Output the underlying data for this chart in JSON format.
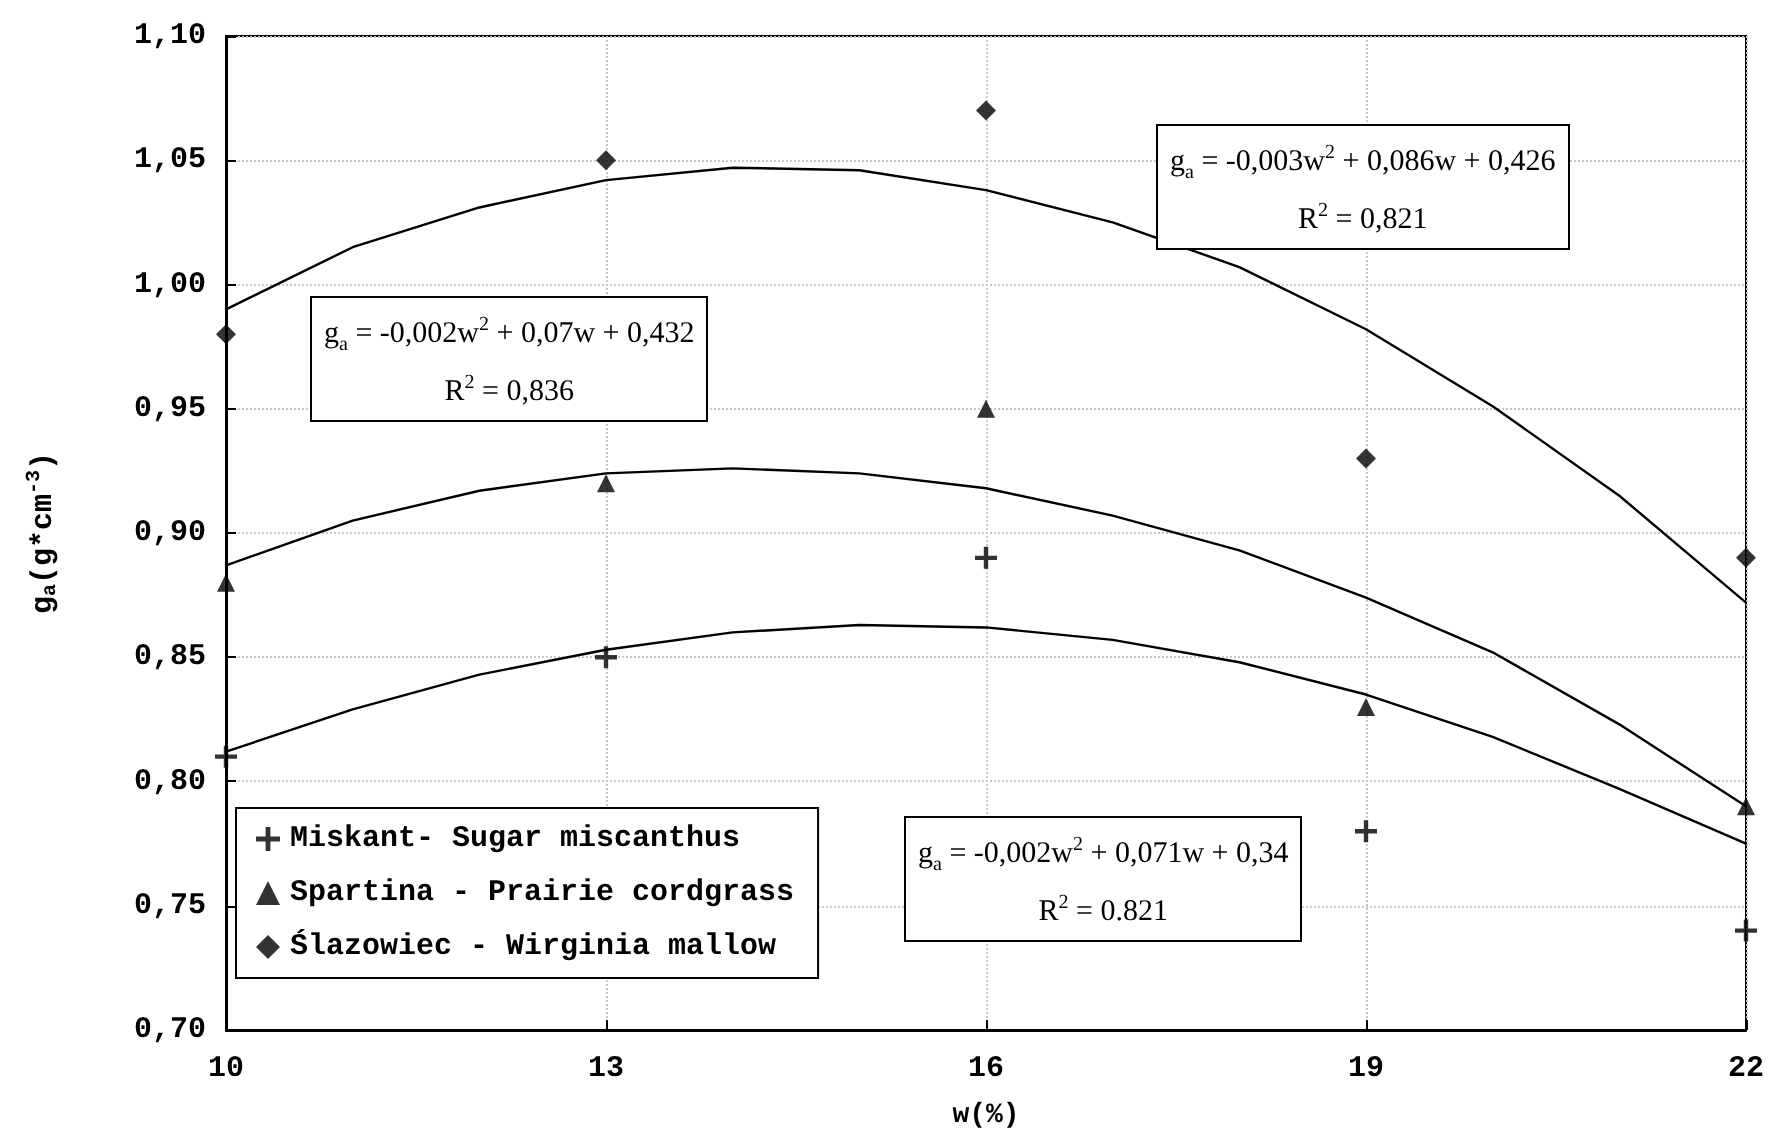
{
  "chart_data": {
    "type": "scatter",
    "xlabel": "w(%)",
    "ylabel": "g$_{a}$(g*cm$^{-3}$)",
    "x": [
      10,
      13,
      16,
      19,
      22
    ],
    "xlim": [
      10,
      22
    ],
    "xticks": [
      10,
      13,
      16,
      19,
      22
    ],
    "ylim": [
      0.7,
      1.1
    ],
    "yticks": [
      {
        "value": 0.7,
        "label": "0,70"
      },
      {
        "value": 0.75,
        "label": "0,75"
      },
      {
        "value": 0.8,
        "label": "0,80"
      },
      {
        "value": 0.85,
        "label": "0,85"
      },
      {
        "value": 0.9,
        "label": "0,90"
      },
      {
        "value": 0.95,
        "label": "0,95"
      },
      {
        "value": 1.0,
        "label": "1,00"
      },
      {
        "value": 1.05,
        "label": "1,05"
      },
      {
        "value": 1.1,
        "label": "1,10"
      }
    ],
    "grid": true,
    "legend": "bottom left",
    "series": [
      {
        "name": "Miskant- Sugar miscanthus",
        "color": "#000000",
        "marker": "cross",
        "values": [
          0.81,
          0.85,
          0.89,
          0.78,
          0.74
        ]
      },
      {
        "name": "Spartina - Prairie cordgrass",
        "color": "#000000",
        "marker": "triangle",
        "values": [
          0.88,
          0.92,
          0.95,
          0.83,
          0.79
        ]
      },
      {
        "name": "Ślazowiec - Wirginia mallow",
        "color": "#000000",
        "marker": "diamond",
        "values": [
          0.98,
          1.05,
          1.07,
          0.93,
          0.89
        ]
      },
      {
        "type": "line",
        "color": "#000000",
        "marker": "none",
        "line_style": "solid",
        "x": [
          10,
          11,
          12,
          13,
          14,
          15,
          16,
          17,
          18,
          19,
          20,
          21,
          22
        ],
        "values": [
          0.99,
          1.015,
          1.031,
          1.042,
          1.047,
          1.046,
          1.038,
          1.025,
          1.007,
          0.982,
          0.951,
          0.915,
          0.872
        ]
      },
      {
        "type": "line",
        "color": "#000000",
        "marker": "none",
        "line_style": "solid",
        "x": [
          10,
          11,
          12,
          13,
          14,
          15,
          16,
          17,
          18,
          19,
          20,
          21,
          22
        ],
        "values": [
          0.887,
          0.905,
          0.917,
          0.924,
          0.926,
          0.924,
          0.918,
          0.907,
          0.893,
          0.874,
          0.852,
          0.823,
          0.79
        ]
      },
      {
        "type": "line",
        "color": "#000000",
        "marker": "none",
        "line_style": "solid",
        "x": [
          10,
          11,
          12,
          13,
          14,
          15,
          16,
          17,
          18,
          19,
          20,
          21,
          22
        ],
        "values": [
          0.812,
          0.829,
          0.843,
          0.853,
          0.86,
          0.863,
          0.862,
          0.857,
          0.848,
          0.835,
          0.818,
          0.797,
          0.775
        ]
      }
    ],
    "annotations": [
      "g$_{a}$ = -0,003w$^{2}$ + 0,086w + 0,426\nR$^{2}$ = 0,821",
      "g$_{a}$ = -0,002w$^{2}$ + 0,07w + 0,432\nR$^{2}$ = 0,836",
      "g$_{a}$ = -0,002w$^{2}$ + 0,071w + 0,34\nR$^{2}$ = 0.821"
    ]
  }
}
